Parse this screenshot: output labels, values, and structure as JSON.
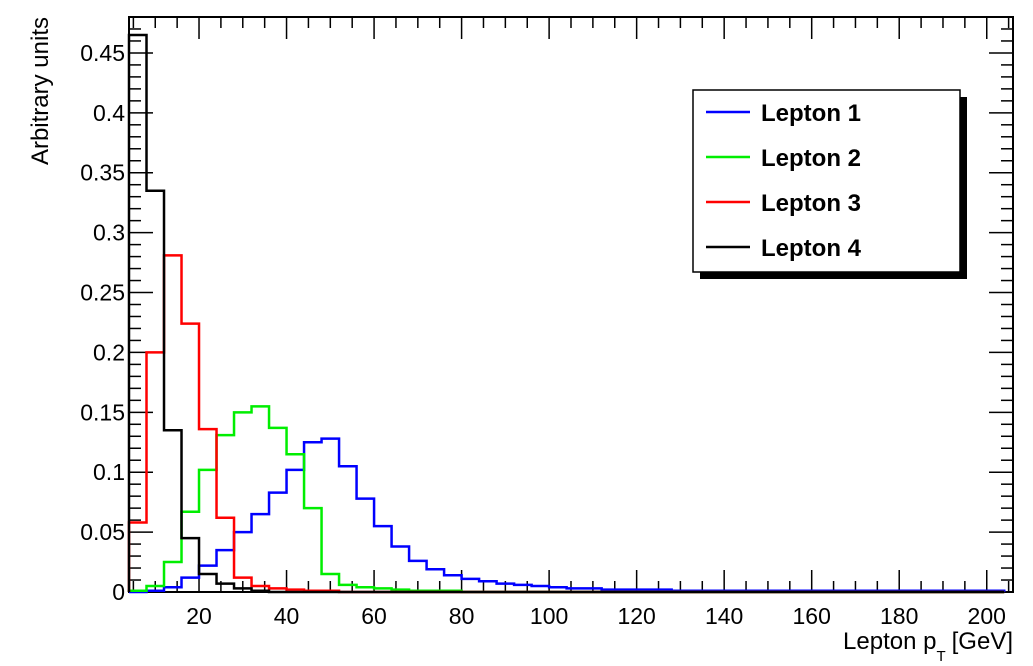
{
  "chart_data": {
    "type": "line",
    "style": "step-histogram",
    "xlabel": "Lepton p",
    "xlabel_subscript": "T",
    "xlabel_unit": "[GeV]",
    "ylabel": "Arbitrary units",
    "xlim": [
      4,
      206
    ],
    "ylim": [
      0,
      0.48
    ],
    "bin_width": 4,
    "x_ticks": [
      20,
      40,
      60,
      80,
      100,
      120,
      140,
      160,
      180,
      200
    ],
    "y_ticks": [
      0,
      0.05,
      0.1,
      0.15,
      0.2,
      0.25,
      0.3,
      0.35,
      0.4,
      0.45
    ],
    "x_tick_labels": [
      "20",
      "40",
      "60",
      "80",
      "100",
      "120",
      "140",
      "160",
      "180",
      "200"
    ],
    "y_tick_labels": [
      "0",
      "0.05",
      "0.1",
      "0.15",
      "0.2",
      "0.25",
      "0.3",
      "0.35",
      "0.4",
      "0.45"
    ],
    "legend_position": "top-right",
    "grid": false,
    "series": [
      {
        "name": "Lepton 1",
        "color": "#0000ff",
        "x_start": 4,
        "values": [
          0.0,
          0.001,
          0.004,
          0.012,
          0.022,
          0.035,
          0.05,
          0.065,
          0.083,
          0.102,
          0.125,
          0.128,
          0.105,
          0.078,
          0.055,
          0.038,
          0.026,
          0.019,
          0.014,
          0.011,
          0.009,
          0.007,
          0.006,
          0.005,
          0.004,
          0.003,
          0.003,
          0.002,
          0.002,
          0.002,
          0.002,
          0.001,
          0.001,
          0.001,
          0.001,
          0.001,
          0.001,
          0.001,
          0.001,
          0.001,
          0.001,
          0.001,
          0.001,
          0.001,
          0.001,
          0.001,
          0.001,
          0.001,
          0.001,
          0.001
        ]
      },
      {
        "name": "Lepton 2",
        "color": "#00ee00",
        "x_start": 4,
        "values": [
          0.001,
          0.005,
          0.025,
          0.067,
          0.102,
          0.131,
          0.15,
          0.155,
          0.137,
          0.115,
          0.07,
          0.015,
          0.006,
          0.004,
          0.003,
          0.002,
          0.001,
          0.001,
          0.001,
          0.0,
          0.0,
          0.0,
          0.0,
          0.0,
          0.0,
          0.0,
          0.0,
          0.0,
          0.0,
          0.0,
          0.0,
          0.0,
          0.0,
          0.0,
          0.0,
          0.0,
          0.0,
          0.0,
          0.0,
          0.0,
          0.0,
          0.0,
          0.0,
          0.0,
          0.0,
          0.0,
          0.0,
          0.0,
          0.0,
          0.0
        ]
      },
      {
        "name": "Lepton 3",
        "color": "#ff0000",
        "x_start": 4,
        "values": [
          0.058,
          0.2,
          0.281,
          0.224,
          0.136,
          0.062,
          0.012,
          0.005,
          0.003,
          0.002,
          0.001,
          0.001,
          0.0,
          0.0,
          0.0,
          0.0,
          0.0,
          0.0,
          0.0,
          0.0,
          0.0,
          0.0,
          0.0,
          0.0,
          0.0,
          0.0,
          0.0,
          0.0,
          0.0,
          0.0,
          0.0,
          0.0,
          0.0,
          0.0,
          0.0,
          0.0,
          0.0,
          0.0,
          0.0,
          0.0,
          0.0,
          0.0,
          0.0,
          0.0,
          0.0,
          0.0,
          0.0,
          0.0,
          0.0,
          0.0
        ]
      },
      {
        "name": "Lepton 4",
        "color": "#000000",
        "x_start": 4,
        "values": [
          0.465,
          0.335,
          0.135,
          0.045,
          0.015,
          0.007,
          0.003,
          0.001,
          0.0,
          0.0,
          0.0,
          0.0,
          0.0,
          0.0,
          0.0,
          0.0,
          0.0,
          0.0,
          0.0,
          0.0,
          0.0,
          0.0,
          0.0,
          0.0,
          0.0,
          0.0,
          0.0,
          0.0,
          0.0,
          0.0,
          0.0,
          0.0,
          0.0,
          0.0,
          0.0,
          0.0,
          0.0,
          0.0,
          0.0,
          0.0,
          0.0,
          0.0,
          0.0,
          0.0,
          0.0,
          0.0,
          0.0,
          0.0,
          0.0,
          0.0
        ]
      }
    ]
  }
}
